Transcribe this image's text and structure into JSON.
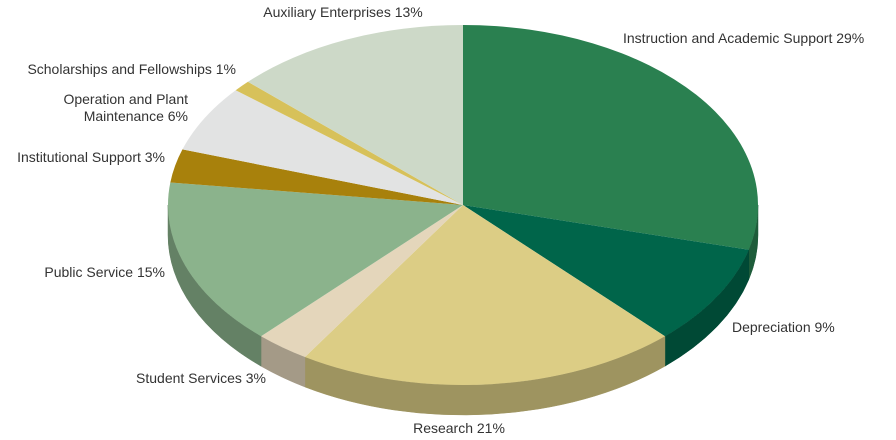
{
  "chart_data": {
    "type": "pie",
    "categories": [
      "Instruction and Academic Support",
      "Depreciation",
      "Research",
      "Student Services",
      "Public Service",
      "Institutional Support",
      "Operation and Plant Maintenance",
      "Scholarships and Fellowships",
      "Auxiliary Enterprises"
    ],
    "values": [
      29,
      9,
      21,
      3,
      15,
      3,
      6,
      1,
      13
    ],
    "value_labels": [
      "29%",
      "9%",
      "21%",
      "3%",
      "15%",
      "3%",
      "6%",
      "1%",
      "13%"
    ],
    "colors": [
      "#2a8050",
      "#00654a",
      "#dccd85",
      "#e4d6bb",
      "#8bb38c",
      "#a8810c",
      "#e2e3e3",
      "#d7c15a",
      "#cdd9c8"
    ]
  }
}
